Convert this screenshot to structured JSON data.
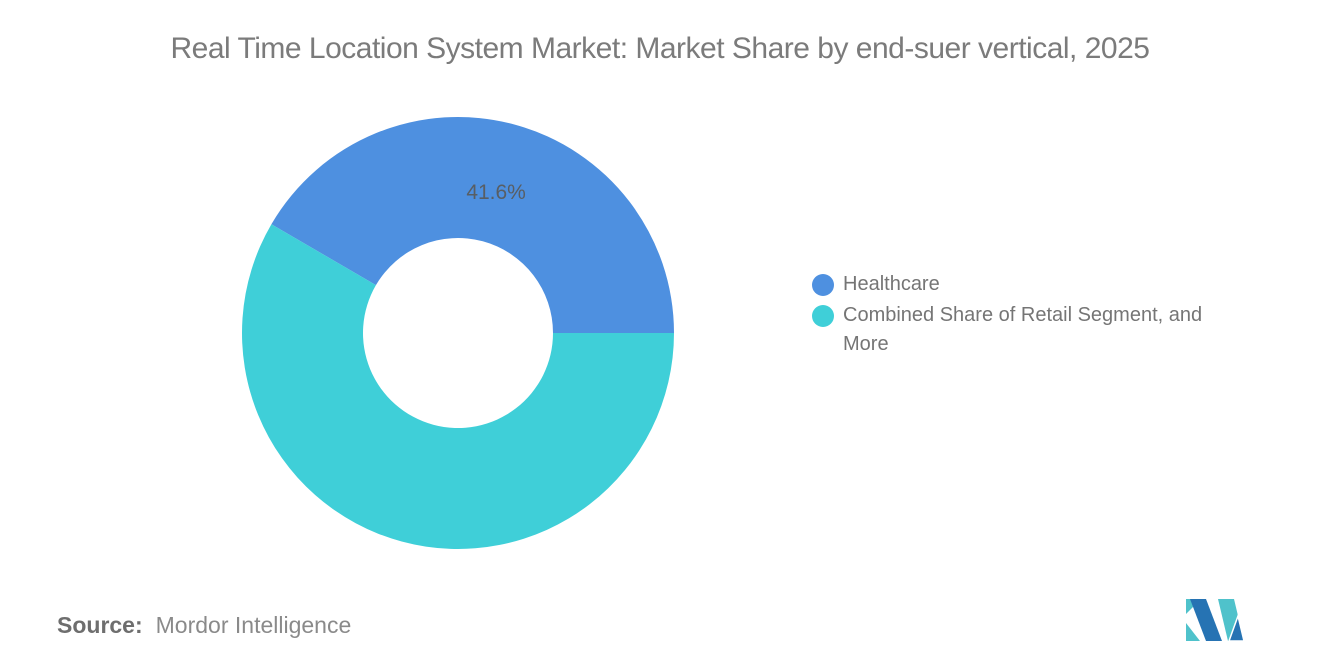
{
  "title": "Real Time Location System Market: Market Share by end-suer vertical, 2025",
  "chart_data": {
    "type": "pie",
    "title": "Real Time Location System Market: Market Share by end-suer vertical, 2025",
    "donut": true,
    "start_angle_deg": 0,
    "direction": "counterclockwise",
    "legend_position": "right",
    "label_color": "#585e64",
    "series": [
      {
        "name": "Healthcare",
        "value": 41.6,
        "label": "41.6%",
        "color": "#4e90e0"
      },
      {
        "name": "Combined Share of Retail Segment, and More",
        "value": 58.4,
        "label": "",
        "color": "#3fcfd8"
      }
    ]
  },
  "source": {
    "prefix": "Source:",
    "text": "Mordor Intelligence"
  },
  "logo": {
    "name": "mordor-intelligence-logo",
    "blue": "#2673b3",
    "teal": "#4fc2cb"
  }
}
